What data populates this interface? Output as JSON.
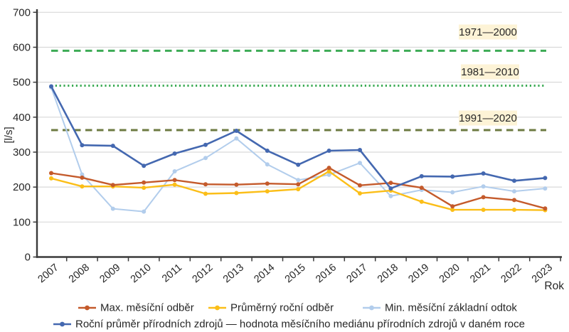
{
  "chart": {
    "y_axis_unit_label": "[l/s]",
    "x_axis_label": "Rok",
    "y_ticks": [
      0,
      100,
      200,
      300,
      400,
      500,
      600,
      700
    ],
    "text_color": "#262626",
    "grid_color": "#d9d9d9",
    "axis_color": "#3a3a3a",
    "ref_label_bg": "#fdf3d6"
  },
  "chart_data": {
    "type": "line",
    "x": [
      2007,
      2008,
      2009,
      2010,
      2011,
      2012,
      2013,
      2014,
      2015,
      2016,
      2017,
      2018,
      2019,
      2020,
      2021,
      2022,
      2023
    ],
    "xlabel": "Rok",
    "ylabel": "[l/s]",
    "ylim": [
      0,
      700
    ],
    "grid": true,
    "legend_position": "bottom",
    "series": [
      {
        "id": "max-mesicni-odber",
        "name": "Max. měsíční odběr",
        "color": "#c45a2b",
        "values": [
          240,
          227,
          206,
          213,
          220,
          208,
          207,
          210,
          208,
          255,
          205,
          212,
          198,
          145,
          171,
          163,
          139
        ]
      },
      {
        "id": "prumerny-rocni-odber",
        "name": "Průměrný roční odběr",
        "color": "#fbbe18",
        "values": [
          225,
          202,
          202,
          198,
          207,
          181,
          183,
          188,
          194,
          245,
          182,
          190,
          158,
          135,
          135,
          135,
          134
        ]
      },
      {
        "id": "min-mesicni-zakladni-odtok",
        "name": "Min. měsíční základní odtok",
        "color": "#b2cdec",
        "values": [
          485,
          236,
          138,
          130,
          245,
          283,
          339,
          265,
          220,
          235,
          269,
          174,
          192,
          185,
          202,
          188,
          196
        ]
      },
      {
        "id": "rocni-prumer-prirodnich-zdroju",
        "name": "Roční průměr přírodních zdrojů — hodnota měsíčního mediánu přírodních zdrojů v daném roce",
        "color": "#4468b0",
        "values": [
          488,
          320,
          318,
          261,
          296,
          321,
          361,
          304,
          264,
          304,
          306,
          196,
          231,
          230,
          239,
          218,
          226
        ]
      }
    ],
    "reference_lines": [
      {
        "id": "ref-1971-2000",
        "label": "1971—2000",
        "value": 590,
        "color": "#3cab55",
        "style": "dashed"
      },
      {
        "id": "ref-1981-2010",
        "label": "1981—2010",
        "value": 490,
        "color": "#3cab55",
        "style": "dotted"
      },
      {
        "id": "ref-1991-2020",
        "label": "1991—2020",
        "value": 363,
        "color": "#6d7a42",
        "style": "dashed"
      }
    ]
  }
}
